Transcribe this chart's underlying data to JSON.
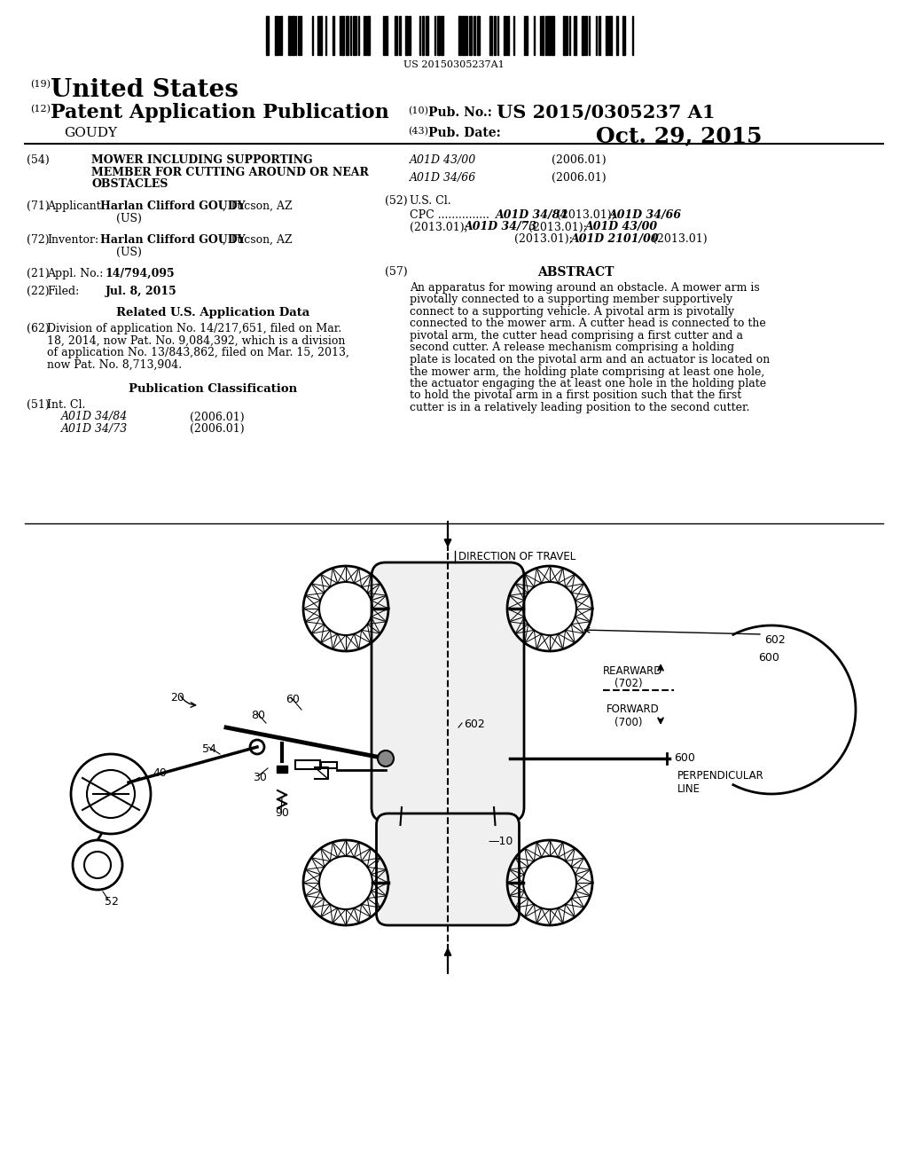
{
  "bg_color": "#ffffff",
  "barcode_text": "US 20150305237A1",
  "country": "United States",
  "pub_type": "Patent Application Publication",
  "inventor_last": "GOUDY",
  "pub_no": "US 2015/0305237 A1",
  "pub_date": "Oct. 29, 2015",
  "title_line1": "MOWER INCLUDING SUPPORTING",
  "title_line2": "MEMBER FOR CUTTING AROUND OR NEAR",
  "title_line3": "OBSTACLES",
  "applicant_bold": "Harlan Clifford GOUDY",
  "applicant_rest": ", Tucson, AZ",
  "applicant_us": "(US)",
  "appl_no": "14/794,095",
  "filed_date": "Jul. 8, 2015",
  "related_lines": [
    "Division of application No. 14/217,651, filed on Mar.",
    "18, 2014, now Pat. No. 9,084,392, which is a division",
    "of application No. 13/843,862, filed on Mar. 15, 2013,",
    "now Pat. No. 8,713,904."
  ],
  "intcl_left": [
    [
      "A01D 34/84",
      "(2006.01)"
    ],
    [
      "A01D 34/73",
      "(2006.01)"
    ]
  ],
  "intcl_right": [
    [
      "A01D 43/00",
      "(2006.01)"
    ],
    [
      "A01D 34/66",
      "(2006.01)"
    ]
  ],
  "abstract_lines": [
    "An apparatus for mowing around an obstacle. A mower arm is",
    "pivotally connected to a supporting member supportively",
    "connect to a supporting vehicle. A pivotal arm is pivotally",
    "connected to the mower arm. A cutter head is connected to the",
    "pivotal arm, the cutter head comprising a first cutter and a",
    "second cutter. A release mechanism comprising a holding",
    "plate is located on the pivotal arm and an actuator is located on",
    "the mower arm, the holding plate comprising at least one hole,",
    "the actuator engaging the at least one hole in the holding plate",
    "to hold the pivotal arm in a first position such that the first",
    "cutter is in a relatively leading position to the second cutter."
  ]
}
